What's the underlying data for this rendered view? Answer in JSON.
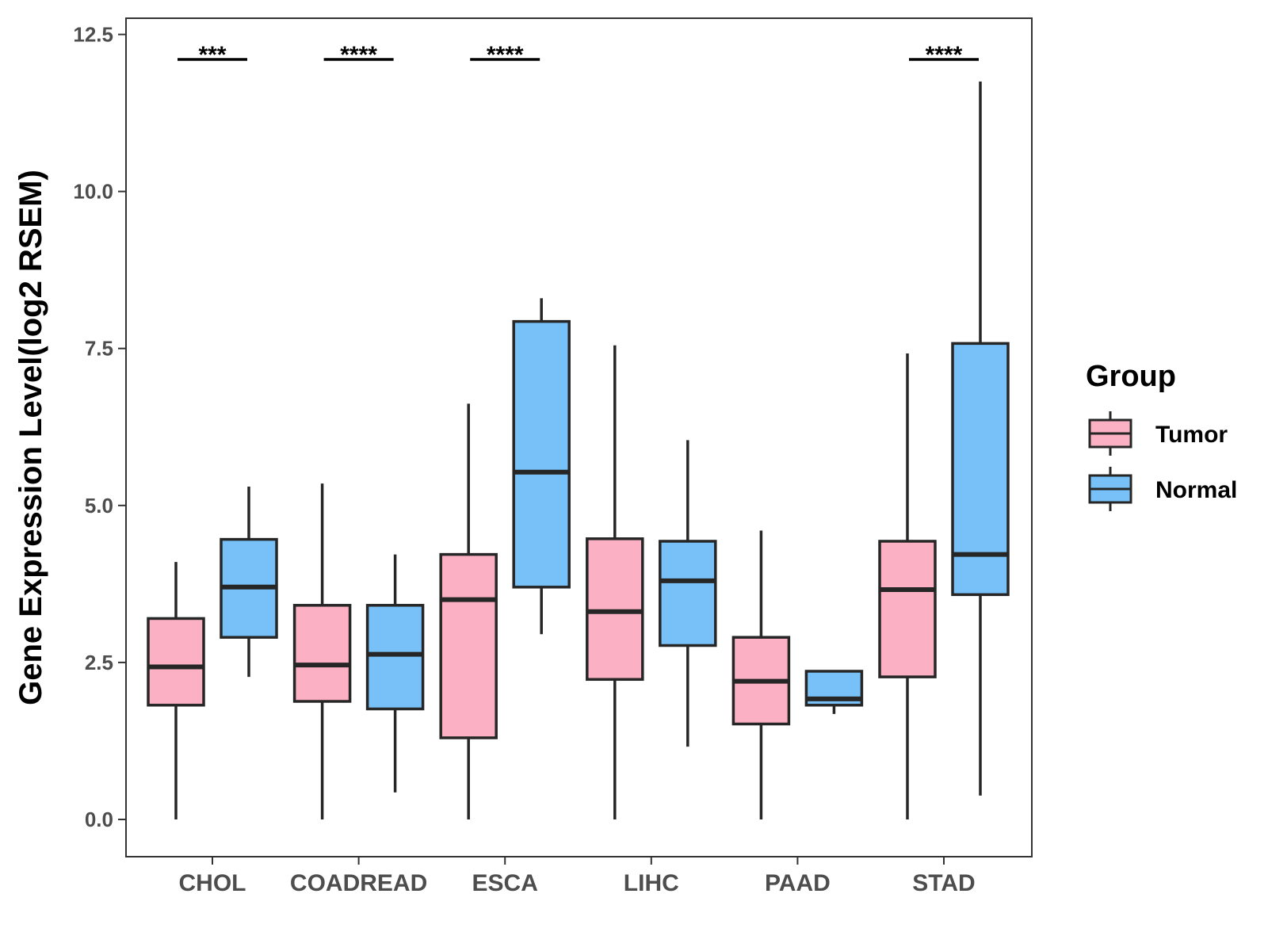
{
  "chart_data": {
    "type": "boxplot",
    "title": "",
    "xlabel": "",
    "ylabel": "Gene Expression Level(log2 RSEM)",
    "ylim": [
      -0.6,
      12.75
    ],
    "yticks": [
      0.0,
      2.5,
      5.0,
      7.5,
      10.0,
      12.5
    ],
    "ytick_labels": [
      "0.0",
      "2.5",
      "5.0",
      "7.5",
      "10.0",
      "12.5"
    ],
    "categories": [
      "CHOL",
      "COADREAD",
      "ESCA",
      "LIHC",
      "PAAD",
      "STAD"
    ],
    "legend": {
      "title": "Group",
      "position": "right",
      "entries": [
        {
          "name": "Tumor",
          "color": "#FBB1C3"
        },
        {
          "name": "Normal",
          "color": "#77C1F8"
        }
      ]
    },
    "series": [
      {
        "name": "Tumor",
        "color": "#FBB1C3",
        "boxes": [
          {
            "category": "CHOL",
            "min": 0.0,
            "q1": 1.82,
            "median": 2.43,
            "q3": 3.2,
            "max": 4.1
          },
          {
            "category": "COADREAD",
            "min": 0.0,
            "q1": 1.88,
            "median": 2.46,
            "q3": 3.41,
            "max": 5.35
          },
          {
            "category": "ESCA",
            "min": 0.0,
            "q1": 1.3,
            "median": 3.5,
            "q3": 4.22,
            "max": 6.62
          },
          {
            "category": "LIHC",
            "min": 0.0,
            "q1": 2.23,
            "median": 3.31,
            "q3": 4.47,
            "max": 7.55
          },
          {
            "category": "PAAD",
            "min": 0.0,
            "q1": 1.52,
            "median": 2.2,
            "q3": 2.9,
            "max": 4.6
          },
          {
            "category": "STAD",
            "min": 0.0,
            "q1": 2.27,
            "median": 3.66,
            "q3": 4.43,
            "max": 7.42
          }
        ]
      },
      {
        "name": "Normal",
        "color": "#77C1F8",
        "boxes": [
          {
            "category": "CHOL",
            "min": 2.27,
            "q1": 2.9,
            "median": 3.7,
            "q3": 4.46,
            "max": 5.3
          },
          {
            "category": "COADREAD",
            "min": 0.43,
            "q1": 1.76,
            "median": 2.63,
            "q3": 3.41,
            "max": 4.22
          },
          {
            "category": "ESCA",
            "min": 2.95,
            "q1": 3.7,
            "median": 5.53,
            "q3": 7.93,
            "max": 8.3
          },
          {
            "category": "LIHC",
            "min": 1.16,
            "q1": 2.77,
            "median": 3.8,
            "q3": 4.43,
            "max": 6.04
          },
          {
            "category": "PAAD",
            "min": 1.68,
            "q1": 1.82,
            "median": 1.92,
            "q3": 2.36,
            "max": 2.36
          },
          {
            "category": "STAD",
            "min": 0.38,
            "q1": 3.58,
            "median": 4.22,
            "q3": 7.58,
            "max": 11.75
          }
        ]
      }
    ],
    "significance": [
      {
        "category": "CHOL",
        "label": "***"
      },
      {
        "category": "COADREAD",
        "label": "****"
      },
      {
        "category": "ESCA",
        "label": "****"
      },
      {
        "category": "LIHC",
        "label": ""
      },
      {
        "category": "PAAD",
        "label": ""
      },
      {
        "category": "STAD",
        "label": "****"
      }
    ]
  }
}
